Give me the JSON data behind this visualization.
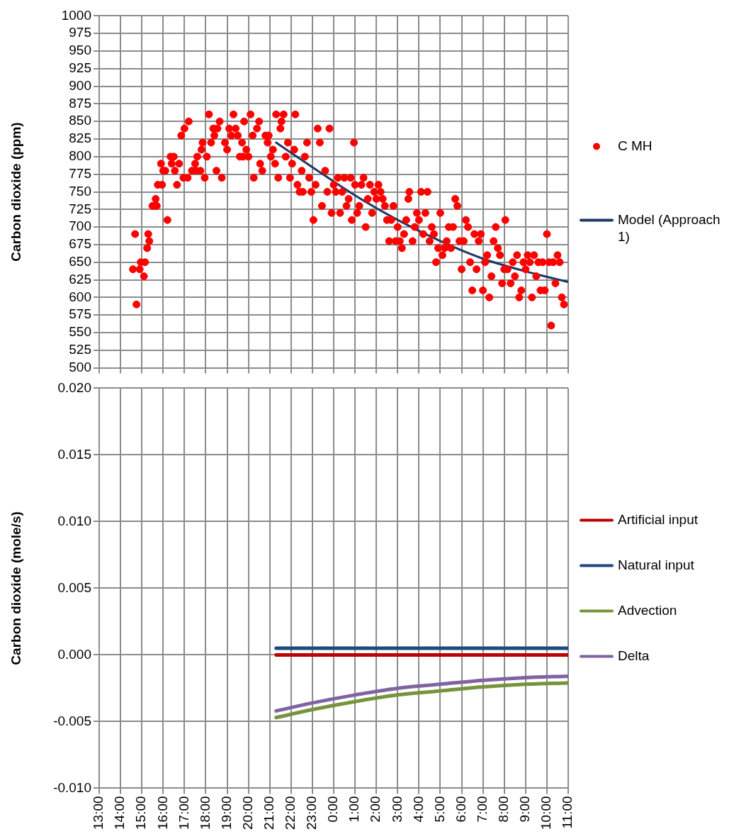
{
  "chart_data": [
    {
      "type": "scatter",
      "ylabel": "Carbon dioxide (ppm)",
      "xlim": [
        "2000-01-01T13:00",
        "2000-01-02T11:00"
      ],
      "xticks": [
        {
          "value": "2000-01-01T13:00",
          "label": null
        },
        {
          "value": "2000-01-01T14:00",
          "label": null
        },
        {
          "value": "2000-01-01T15:00",
          "label": null
        },
        {
          "value": "2000-01-01T16:00",
          "label": null
        },
        {
          "value": "2000-01-01T17:00",
          "label": null
        },
        {
          "value": "2000-01-01T18:00",
          "label": null
        },
        {
          "value": "2000-01-01T19:00",
          "label": null
        },
        {
          "value": "2000-01-01T20:00",
          "label": null
        },
        {
          "value": "2000-01-01T21:00",
          "label": null
        },
        {
          "value": "2000-01-01T22:00",
          "label": null
        },
        {
          "value": "2000-01-01T23:00",
          "label": null
        },
        {
          "value": "2000-01-02T00:00",
          "label": null
        },
        {
          "value": "2000-01-02T01:00",
          "label": null
        },
        {
          "value": "2000-01-02T02:00",
          "label": null
        },
        {
          "value": "2000-01-02T03:00",
          "label": null
        },
        {
          "value": "2000-01-02T04:00",
          "label": null
        },
        {
          "value": "2000-01-02T05:00",
          "label": null
        },
        {
          "value": "2000-01-02T06:00",
          "label": null
        },
        {
          "value": "2000-01-02T07:00",
          "label": null
        },
        {
          "value": "2000-01-02T08:00",
          "label": null
        },
        {
          "value": "2000-01-02T09:00",
          "label": null
        },
        {
          "value": "2000-01-02T10:00",
          "label": null
        },
        {
          "value": "2000-01-02T11:00",
          "label": null
        }
      ],
      "ylim": [
        500,
        1000
      ],
      "yticks": [
        500,
        525,
        550,
        575,
        600,
        625,
        650,
        675,
        700,
        725,
        750,
        775,
        800,
        825,
        850,
        875,
        900,
        925,
        950,
        975,
        1000
      ],
      "grid": true,
      "legend": "right",
      "tick_labels": "y",
      "series": [
        {
          "name": "C MH",
          "type": "scatter",
          "marker": "circle",
          "color": "#ff0000",
          "x": [
            "2000-01-01T14:35",
            "2000-01-01T14:41",
            "2000-01-01T14:45",
            "2000-01-01T14:54",
            "2000-01-01T14:57",
            "2000-01-01T15:06",
            "2000-01-01T15:09",
            "2000-01-01T15:15",
            "2000-01-01T15:18",
            "2000-01-01T15:21",
            "2000-01-01T15:30",
            "2000-01-01T15:36",
            "2000-01-01T15:39",
            "2000-01-01T15:42",
            "2000-01-01T15:45",
            "2000-01-01T15:54",
            "2000-01-01T15:57",
            "2000-01-01T16:00",
            "2000-01-01T16:06",
            "2000-01-01T16:12",
            "2000-01-01T16:21",
            "2000-01-01T16:24",
            "2000-01-01T16:30",
            "2000-01-01T16:33",
            "2000-01-01T16:39",
            "2000-01-01T16:45",
            "2000-01-01T16:51",
            "2000-01-01T16:57",
            "2000-01-01T17:00",
            "2000-01-01T17:09",
            "2000-01-01T17:12",
            "2000-01-01T17:21",
            "2000-01-01T17:30",
            "2000-01-01T17:33",
            "2000-01-01T17:36",
            "2000-01-01T17:45",
            "2000-01-01T17:48",
            "2000-01-01T17:51",
            "2000-01-01T17:57",
            "2000-01-01T18:03",
            "2000-01-01T18:09",
            "2000-01-01T18:15",
            "2000-01-01T18:21",
            "2000-01-01T18:24",
            "2000-01-01T18:30",
            "2000-01-01T18:33",
            "2000-01-01T18:39",
            "2000-01-01T18:45",
            "2000-01-01T18:54",
            "2000-01-01T19:00",
            "2000-01-01T19:06",
            "2000-01-01T19:12",
            "2000-01-01T19:18",
            "2000-01-01T19:24",
            "2000-01-01T19:30",
            "2000-01-01T19:36",
            "2000-01-01T19:42",
            "2000-01-01T19:45",
            "2000-01-01T19:48",
            "2000-01-01T19:54",
            "2000-01-01T20:00",
            "2000-01-01T20:06",
            "2000-01-01T20:12",
            "2000-01-01T20:15",
            "2000-01-01T20:24",
            "2000-01-01T20:30",
            "2000-01-01T20:33",
            "2000-01-01T20:39",
            "2000-01-01T20:48",
            "2000-01-01T20:54",
            "2000-01-01T20:57",
            "2000-01-01T21:03",
            "2000-01-01T21:09",
            "2000-01-01T21:15",
            "2000-01-01T21:18",
            "2000-01-01T21:24",
            "2000-01-01T21:30",
            "2000-01-01T21:33",
            "2000-01-01T21:39",
            "2000-01-01T21:45",
            "2000-01-01T21:51",
            "2000-01-01T21:57",
            "2000-01-01T22:03",
            "2000-01-01T22:09",
            "2000-01-01T22:12",
            "2000-01-01T22:18",
            "2000-01-01T22:24",
            "2000-01-01T22:30",
            "2000-01-01T22:33",
            "2000-01-01T22:39",
            "2000-01-01T22:45",
            "2000-01-01T22:51",
            "2000-01-01T22:57",
            "2000-01-01T23:03",
            "2000-01-01T23:09",
            "2000-01-01T23:15",
            "2000-01-01T23:21",
            "2000-01-01T23:27",
            "2000-01-01T23:36",
            "2000-01-01T23:42",
            "2000-01-01T23:48",
            "2000-01-01T23:54",
            "2000-01-02T00:00",
            "2000-01-02T00:06",
            "2000-01-02T00:12",
            "2000-01-02T00:18",
            "2000-01-02T00:24",
            "2000-01-02T00:30",
            "2000-01-02T00:36",
            "2000-01-02T00:42",
            "2000-01-02T00:48",
            "2000-01-02T00:51",
            "2000-01-02T00:57",
            "2000-01-02T01:00",
            "2000-01-02T01:06",
            "2000-01-02T01:12",
            "2000-01-02T01:18",
            "2000-01-02T01:24",
            "2000-01-02T01:30",
            "2000-01-02T01:36",
            "2000-01-02T01:42",
            "2000-01-02T01:48",
            "2000-01-02T01:54",
            "2000-01-02T02:00",
            "2000-01-02T02:06",
            "2000-01-02T02:12",
            "2000-01-02T02:18",
            "2000-01-02T02:24",
            "2000-01-02T02:30",
            "2000-01-02T02:36",
            "2000-01-02T02:42",
            "2000-01-02T02:48",
            "2000-01-02T02:54",
            "2000-01-02T03:00",
            "2000-01-02T03:06",
            "2000-01-02T03:12",
            "2000-01-02T03:18",
            "2000-01-02T03:24",
            "2000-01-02T03:30",
            "2000-01-02T03:33",
            "2000-01-02T03:42",
            "2000-01-02T03:48",
            "2000-01-02T03:54",
            "2000-01-02T04:00",
            "2000-01-02T04:06",
            "2000-01-02T04:12",
            "2000-01-02T04:18",
            "2000-01-02T04:24",
            "2000-01-02T04:30",
            "2000-01-02T04:36",
            "2000-01-02T04:42",
            "2000-01-02T04:48",
            "2000-01-02T04:54",
            "2000-01-02T05:00",
            "2000-01-02T05:06",
            "2000-01-02T05:12",
            "2000-01-02T05:18",
            "2000-01-02T05:24",
            "2000-01-02T05:30",
            "2000-01-02T05:36",
            "2000-01-02T05:42",
            "2000-01-02T05:48",
            "2000-01-02T05:54",
            "2000-01-02T06:00",
            "2000-01-02T06:06",
            "2000-01-02T06:12",
            "2000-01-02T06:18",
            "2000-01-02T06:24",
            "2000-01-02T06:30",
            "2000-01-02T06:36",
            "2000-01-02T06:42",
            "2000-01-02T06:48",
            "2000-01-02T06:54",
            "2000-01-02T07:00",
            "2000-01-02T07:06",
            "2000-01-02T07:12",
            "2000-01-02T07:18",
            "2000-01-02T07:24",
            "2000-01-02T07:30",
            "2000-01-02T07:36",
            "2000-01-02T07:42",
            "2000-01-02T07:48",
            "2000-01-02T07:54",
            "2000-01-02T08:00",
            "2000-01-02T08:03",
            "2000-01-02T08:09",
            "2000-01-02T08:18",
            "2000-01-02T08:24",
            "2000-01-02T08:30",
            "2000-01-02T08:36",
            "2000-01-02T08:42",
            "2000-01-02T08:48",
            "2000-01-02T08:54",
            "2000-01-02T09:00",
            "2000-01-02T09:06",
            "2000-01-02T09:12",
            "2000-01-02T09:18",
            "2000-01-02T09:24",
            "2000-01-02T09:30",
            "2000-01-02T09:36",
            "2000-01-02T09:42",
            "2000-01-02T09:48",
            "2000-01-02T09:54",
            "2000-01-02T10:00",
            "2000-01-02T10:06",
            "2000-01-02T10:12",
            "2000-01-02T10:18",
            "2000-01-02T10:24",
            "2000-01-02T10:30",
            "2000-01-02T10:36",
            "2000-01-02T10:42",
            "2000-01-02T10:48"
          ],
          "values": [
            640,
            690,
            590,
            640,
            650,
            630,
            650,
            670,
            690,
            680,
            730,
            730,
            740,
            730,
            760,
            790,
            760,
            780,
            780,
            710,
            800,
            790,
            800,
            780,
            760,
            790,
            830,
            770,
            840,
            770,
            850,
            780,
            790,
            780,
            800,
            780,
            810,
            820,
            770,
            800,
            860,
            820,
            840,
            830,
            780,
            840,
            850,
            770,
            820,
            810,
            840,
            830,
            860,
            840,
            830,
            800,
            820,
            800,
            850,
            810,
            800,
            860,
            830,
            770,
            840,
            850,
            790,
            780,
            830,
            820,
            830,
            800,
            810,
            790,
            860,
            770,
            840,
            850,
            860,
            800,
            820,
            770,
            790,
            810,
            860,
            760,
            750,
            780,
            750,
            800,
            820,
            770,
            750,
            710,
            760,
            840,
            820,
            730,
            780,
            750,
            840,
            720,
            760,
            750,
            770,
            720,
            750,
            770,
            730,
            740,
            770,
            710,
            820,
            760,
            720,
            730,
            760,
            770,
            700,
            740,
            760,
            720,
            750,
            740,
            760,
            750,
            740,
            730,
            710,
            680,
            710,
            730,
            680,
            700,
            680,
            670,
            690,
            710,
            740,
            750,
            680,
            700,
            720,
            710,
            750,
            690,
            720,
            750,
            680,
            700,
            690,
            650,
            670,
            720,
            660,
            670,
            680,
            700,
            670,
            700,
            740,
            730,
            680,
            640,
            680,
            710,
            700,
            650,
            610,
            690,
            640,
            680,
            690,
            610,
            650,
            660,
            600,
            630,
            680,
            700,
            670,
            660,
            620,
            640,
            710,
            640,
            620,
            650,
            630,
            660,
            600,
            610,
            650,
            640,
            660,
            650,
            600,
            660,
            630,
            650,
            610,
            650,
            610,
            690,
            650,
            560,
            650,
            620,
            660,
            650,
            600,
            590
          ]
        },
        {
          "name": "Model (Approach 1)",
          "type": "line",
          "marker": "none",
          "color": "#1f3864",
          "x": [
            "2000-01-01T21:18",
            "2000-01-01T23:00",
            "2000-01-02T01:00",
            "2000-01-02T03:00",
            "2000-01-02T05:00",
            "2000-01-02T07:00",
            "2000-01-02T09:00",
            "2000-01-02T11:00"
          ],
          "values": [
            820,
            785,
            745,
            710,
            680,
            655,
            637,
            622
          ]
        }
      ]
    },
    {
      "type": "line",
      "ylabel": "Carbon dioxide (mole/s)",
      "xlim": [
        "2000-01-01T13:00",
        "2000-01-02T11:00"
      ],
      "xticks": [
        {
          "value": "2000-01-01T13:00",
          "label": "13:00"
        },
        {
          "value": "2000-01-01T14:00",
          "label": "14:00"
        },
        {
          "value": "2000-01-01T15:00",
          "label": "15:00"
        },
        {
          "value": "2000-01-01T16:00",
          "label": "16:00"
        },
        {
          "value": "2000-01-01T17:00",
          "label": "17:00"
        },
        {
          "value": "2000-01-01T18:00",
          "label": "18:00"
        },
        {
          "value": "2000-01-01T19:00",
          "label": "19:00"
        },
        {
          "value": "2000-01-01T20:00",
          "label": "20:00"
        },
        {
          "value": "2000-01-01T21:00",
          "label": "21:00"
        },
        {
          "value": "2000-01-01T22:00",
          "label": "22:00"
        },
        {
          "value": "2000-01-01T23:00",
          "label": "23:00"
        },
        {
          "value": "2000-01-02T00:00",
          "label": "0:00"
        },
        {
          "value": "2000-01-02T01:00",
          "label": "1:00"
        },
        {
          "value": "2000-01-02T02:00",
          "label": "2:00"
        },
        {
          "value": "2000-01-02T03:00",
          "label": "3:00"
        },
        {
          "value": "2000-01-02T04:00",
          "label": "4:00"
        },
        {
          "value": "2000-01-02T05:00",
          "label": "5:00"
        },
        {
          "value": "2000-01-02T06:00",
          "label": "6:00"
        },
        {
          "value": "2000-01-02T07:00",
          "label": "7:00"
        },
        {
          "value": "2000-01-02T08:00",
          "label": "8:00"
        },
        {
          "value": "2000-01-02T09:00",
          "label": "9:00"
        },
        {
          "value": "2000-01-02T10:00",
          "label": "10:00"
        },
        {
          "value": "2000-01-02T11:00",
          "label": "11:00"
        }
      ],
      "ylim": [
        -0.01,
        0.02
      ],
      "yticks": [
        {
          "value": -0.01,
          "label": "-0.010"
        },
        {
          "value": -0.005,
          "label": "-0.005"
        },
        {
          "value": 0,
          "label": "0.000"
        },
        {
          "value": 0.005,
          "label": "0.005"
        },
        {
          "value": 0.01,
          "label": "0.010"
        },
        {
          "value": 0.015,
          "label": "0.015"
        },
        {
          "value": 0.02,
          "label": "0.020"
        }
      ],
      "grid": true,
      "legend": "right",
      "series": [
        {
          "name": "Artificial input",
          "type": "line",
          "color": "#c00000",
          "x": [
            "2000-01-01T21:18",
            "2000-01-02T11:00"
          ],
          "values": [
            0,
            0
          ]
        },
        {
          "name": "Natural input",
          "type": "line",
          "color": "#1f497d",
          "x": [
            "2000-01-01T21:18",
            "2000-01-02T11:00"
          ],
          "values": [
            0.0005,
            0.0005
          ]
        },
        {
          "name": "Advection",
          "type": "line",
          "color": "#77933c",
          "x": [
            "2000-01-01T21:18",
            "2000-01-01T23:00",
            "2000-01-02T01:00",
            "2000-01-02T03:00",
            "2000-01-02T05:00",
            "2000-01-02T07:00",
            "2000-01-02T09:00",
            "2000-01-02T11:00"
          ],
          "values": [
            -0.0047,
            -0.0041,
            -0.0035,
            -0.003,
            -0.0027,
            -0.0024,
            -0.0022,
            -0.0021
          ]
        },
        {
          "name": "Delta",
          "type": "line",
          "color": "#8064a2",
          "x": [
            "2000-01-01T21:18",
            "2000-01-01T23:00",
            "2000-01-02T01:00",
            "2000-01-02T03:00",
            "2000-01-02T05:00",
            "2000-01-02T07:00",
            "2000-01-02T09:00",
            "2000-01-02T11:00"
          ],
          "values": [
            -0.0042,
            -0.0036,
            -0.003,
            -0.0025,
            -0.0022,
            -0.0019,
            -0.0017,
            -0.0016
          ]
        }
      ]
    }
  ]
}
